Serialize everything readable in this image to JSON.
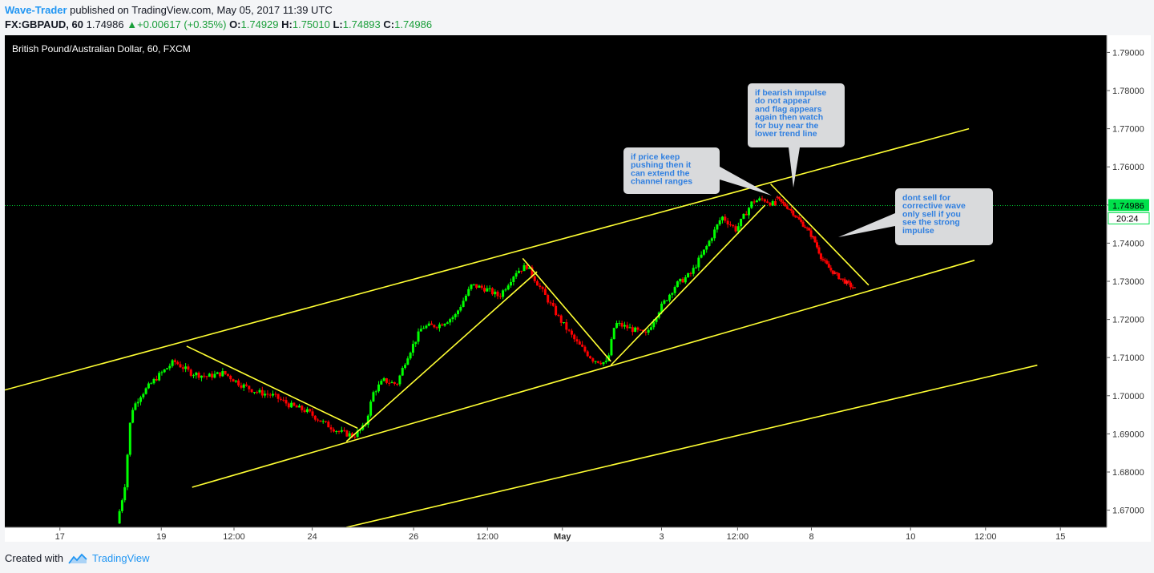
{
  "header": {
    "author": "Wave-Trader",
    "published_text": " published on TradingView.com, May 05, 2017 11:39 UTC",
    "symbol": "FX:GBPAUD, 60",
    "last": "1.74986",
    "change": "+0.00617 (+0.35%)",
    "open_label": "O:",
    "open": "1.74929",
    "high_label": "H:",
    "high": "1.75010",
    "low_label": "L:",
    "low": "1.74893",
    "close_label": "C:",
    "close": "1.74986"
  },
  "footer": {
    "created_with": "Created with",
    "brand": "TradingView"
  },
  "chart_data": {
    "type": "candlestick",
    "title": "British Pound/Australian Dollar, 60, FXCM",
    "ylim": [
      1.6655,
      1.7945
    ],
    "y_ticks": [
      "1.79000",
      "1.78000",
      "1.77000",
      "1.76000",
      "1.75000",
      "1.74000",
      "1.73000",
      "1.72000",
      "1.71000",
      "1.70000",
      "1.69000",
      "1.68000",
      "1.67000"
    ],
    "x_ticks": [
      "17",
      "19",
      "12:00",
      "24",
      "26",
      "12:00",
      "May",
      "3",
      "12:00",
      "8",
      "10",
      "12:00",
      "15"
    ],
    "current_price": "1.74986",
    "countdown": "20:24",
    "up_color": "#00ff00",
    "down_color": "#ff0000",
    "line_color": "#ffff33",
    "price_path": [
      [
        0.103,
        1.6665
      ],
      [
        0.11,
        1.676
      ],
      [
        0.116,
        1.696
      ],
      [
        0.124,
        1.7
      ],
      [
        0.14,
        1.705
      ],
      [
        0.155,
        1.709
      ],
      [
        0.17,
        1.706
      ],
      [
        0.185,
        1.705
      ],
      [
        0.2,
        1.706
      ],
      [
        0.215,
        1.703
      ],
      [
        0.23,
        1.701
      ],
      [
        0.245,
        1.7
      ],
      [
        0.26,
        1.6975
      ],
      [
        0.275,
        1.696
      ],
      [
        0.29,
        1.693
      ],
      [
        0.305,
        1.6905
      ],
      [
        0.318,
        1.6895
      ],
      [
        0.328,
        1.692
      ],
      [
        0.336,
        1.701
      ],
      [
        0.345,
        1.704
      ],
      [
        0.357,
        1.703
      ],
      [
        0.366,
        1.71
      ],
      [
        0.38,
        1.718
      ],
      [
        0.395,
        1.7185
      ],
      [
        0.41,
        1.721
      ],
      [
        0.425,
        1.729
      ],
      [
        0.438,
        1.728
      ],
      [
        0.45,
        1.726
      ],
      [
        0.465,
        1.7325
      ],
      [
        0.475,
        1.734
      ],
      [
        0.49,
        1.727
      ],
      [
        0.505,
        1.72
      ],
      [
        0.52,
        1.714
      ],
      [
        0.535,
        1.7095
      ],
      [
        0.548,
        1.7085
      ],
      [
        0.555,
        1.719
      ],
      [
        0.57,
        1.7175
      ],
      [
        0.583,
        1.716
      ],
      [
        0.594,
        1.722
      ],
      [
        0.61,
        1.729
      ],
      [
        0.624,
        1.732
      ],
      [
        0.638,
        1.739
      ],
      [
        0.652,
        1.747
      ],
      [
        0.665,
        1.7435
      ],
      [
        0.68,
        1.751
      ],
      [
        0.69,
        1.7515
      ],
      [
        0.7,
        1.75
      ]
    ],
    "bear_path": [
      [
        0.7,
        1.752
      ],
      [
        0.706,
        1.7505
      ],
      [
        0.713,
        1.749
      ],
      [
        0.72,
        1.7465
      ],
      [
        0.728,
        1.744
      ],
      [
        0.735,
        1.741
      ],
      [
        0.742,
        1.736
      ],
      [
        0.75,
        1.733
      ],
      [
        0.758,
        1.731
      ],
      [
        0.765,
        1.7295
      ],
      [
        0.772,
        1.728
      ]
    ],
    "trend_lines": [
      [
        [
          0.0,
          1.7015
        ],
        [
          0.875,
          1.77
        ]
      ],
      [
        [
          0.17,
          1.676
        ],
        [
          0.88,
          1.7355
        ]
      ],
      [
        [
          0.31,
          1.6655
        ],
        [
          0.937,
          1.708
        ]
      ],
      [
        [
          0.165,
          1.713
        ],
        [
          0.32,
          1.6915
        ]
      ],
      [
        [
          0.31,
          1.688
        ],
        [
          0.483,
          1.7325
        ]
      ],
      [
        [
          0.47,
          1.736
        ],
        [
          0.55,
          1.709
        ]
      ],
      [
        [
          0.55,
          1.708
        ],
        [
          0.69,
          1.75
        ]
      ],
      [
        [
          0.695,
          1.7555
        ],
        [
          0.784,
          1.729
        ]
      ]
    ],
    "annotations": [
      {
        "text": "if price keep pushing then it can extend the channel ranges",
        "lines": [
          "if price keep",
          "pushing then it",
          "can extend the",
          "channel ranges"
        ]
      },
      {
        "text": "if bearish impulse do not appear and flag appears again then watch for buy near the lower trend line",
        "lines": [
          "if bearish impulse",
          "do not appear",
          "and flag appears",
          "again then watch",
          "for buy near the",
          "lower trend line"
        ]
      },
      {
        "text": "dont sell for corrective wave only sell if you see the strong impulse",
        "lines": [
          "dont sell for",
          "corrective wave",
          "only sell if you",
          "see the strong",
          "impulse"
        ]
      }
    ]
  }
}
